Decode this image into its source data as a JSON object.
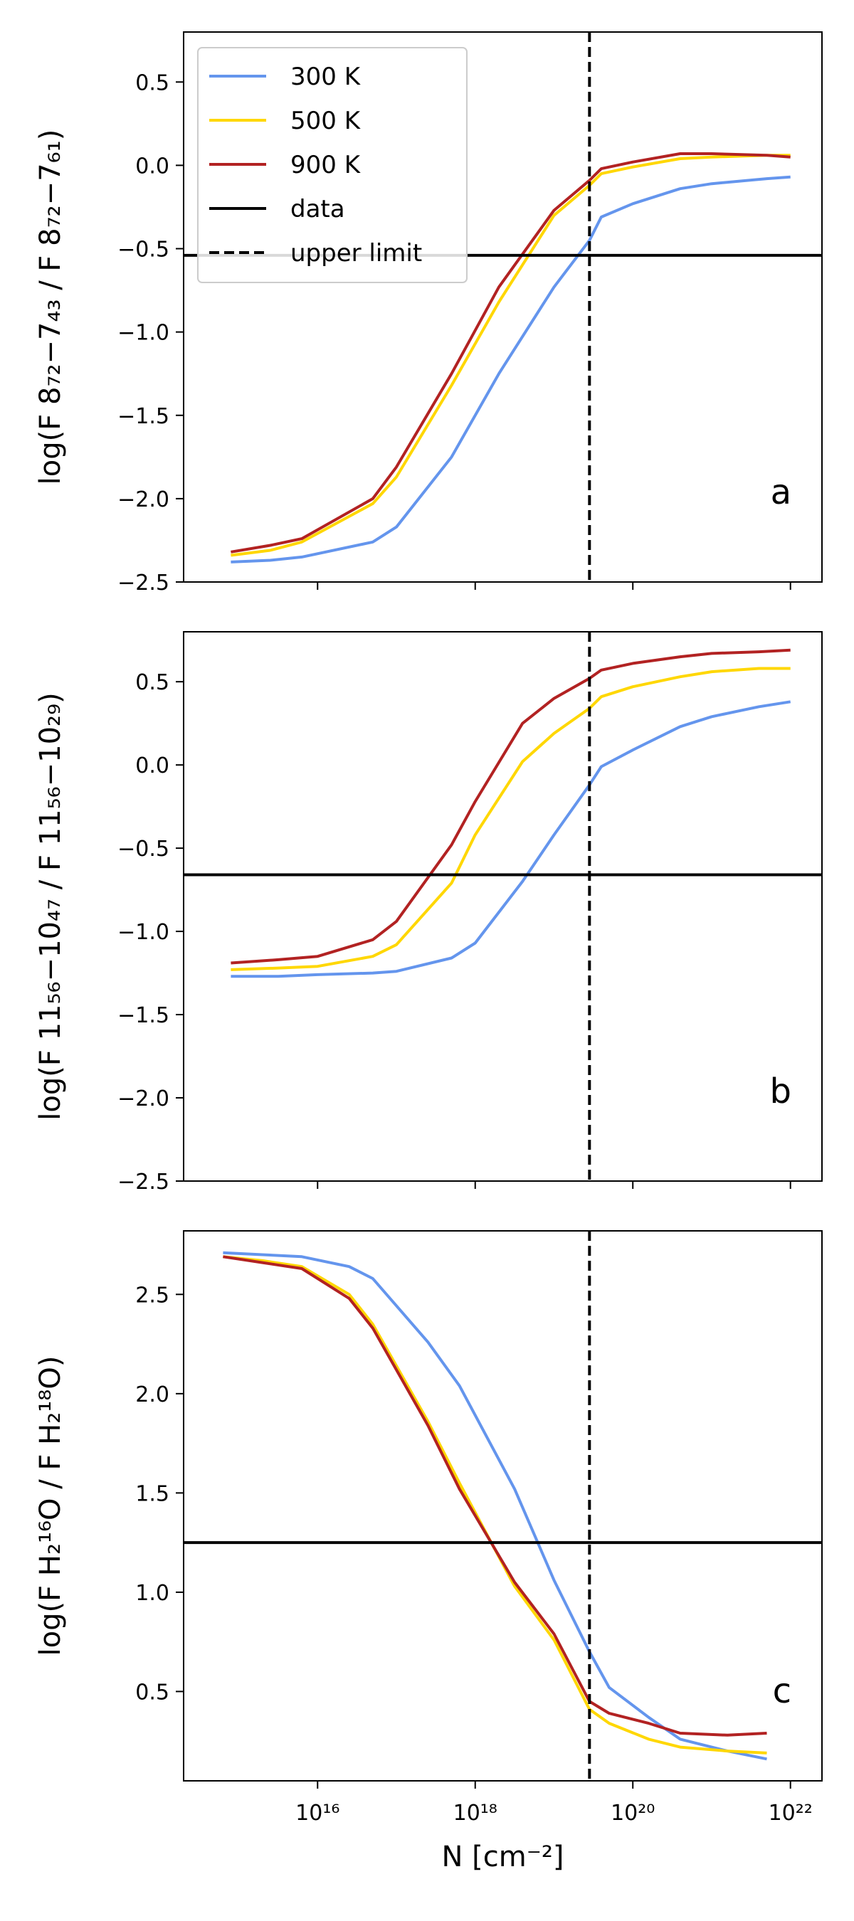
{
  "chart_data": {
    "type": "line",
    "x_scale": "log10",
    "xlabel": "N [cm⁻²]",
    "xlim_log10": [
      14.3,
      22.4
    ],
    "xticks_log10": [
      16,
      18,
      20,
      22
    ],
    "xtick_labels": [
      "10¹⁶",
      "10¹⁸",
      "10²⁰",
      "10²²"
    ],
    "series_colors": {
      "300 K": "#6495ED",
      "500 K": "#FFD700",
      "900 K": "#B22222"
    },
    "legend": {
      "placement": "top-left",
      "entries": [
        {
          "label": "300 K",
          "style": "solid",
          "color": "#6495ED"
        },
        {
          "label": "500 K",
          "style": "solid",
          "color": "#FFD700"
        },
        {
          "label": "900 K",
          "style": "solid",
          "color": "#B22222"
        },
        {
          "label": "data",
          "style": "solid",
          "color": "#000000"
        },
        {
          "label": "upper limit",
          "style": "dashed",
          "color": "#000000"
        }
      ]
    },
    "panels": [
      {
        "letter": "a",
        "ylabel": "log(F 8₇₂−7₄₃ / F 8₇₂−7₆₁)",
        "ylim": [
          -2.5,
          0.8
        ],
        "yticks": [
          -2.5,
          -2.0,
          -1.5,
          -1.0,
          -0.5,
          0.0,
          0.5
        ],
        "ytick_labels": [
          "−2.5",
          "−2.0",
          "−1.5",
          "−1.0",
          "−0.5",
          "0.0",
          "0.5"
        ],
        "data_value": -0.54,
        "upper_limit_log10N": 19.45,
        "series": [
          {
            "name": "300 K",
            "log10N": [
              14.9,
              15.4,
              15.8,
              16.7,
              17.0,
              17.7,
              18.3,
              19.0,
              19.45,
              19.6,
              20.0,
              20.6,
              21.0,
              21.7,
              22.0
            ],
            "values": [
              -2.38,
              -2.37,
              -2.35,
              -2.26,
              -2.17,
              -1.75,
              -1.25,
              -0.73,
              -0.45,
              -0.31,
              -0.23,
              -0.14,
              -0.11,
              -0.08,
              -0.07
            ]
          },
          {
            "name": "500 K",
            "log10N": [
              14.9,
              15.4,
              15.8,
              16.7,
              17.0,
              17.7,
              18.3,
              19.0,
              19.45,
              19.6,
              20.0,
              20.6,
              21.0,
              21.7,
              22.0
            ],
            "values": [
              -2.34,
              -2.31,
              -2.26,
              -2.03,
              -1.87,
              -1.32,
              -0.82,
              -0.3,
              -0.12,
              -0.05,
              -0.01,
              0.04,
              0.05,
              0.06,
              0.06
            ]
          },
          {
            "name": "900 K",
            "log10N": [
              14.9,
              15.4,
              15.8,
              16.7,
              17.0,
              17.7,
              18.3,
              19.0,
              19.45,
              19.6,
              20.0,
              20.6,
              21.0,
              21.7,
              22.0
            ],
            "values": [
              -2.32,
              -2.28,
              -2.24,
              -2.0,
              -1.81,
              -1.25,
              -0.73,
              -0.27,
              -0.09,
              -0.02,
              0.02,
              0.07,
              0.07,
              0.06,
              0.05
            ]
          }
        ]
      },
      {
        "letter": "b",
        "ylabel": "log(F 11₅₆−10₄₇ / F 11₅₆−10₂₉)",
        "ylim": [
          -2.5,
          0.8
        ],
        "yticks": [
          -2.5,
          -2.0,
          -1.5,
          -1.0,
          -0.5,
          0.0,
          0.5
        ],
        "ytick_labels": [
          "−2.5",
          "−2.0",
          "−1.5",
          "−1.0",
          "−0.5",
          "0.0",
          "0.5"
        ],
        "data_value": -0.66,
        "upper_limit_log10N": 19.45,
        "series": [
          {
            "name": "300 K",
            "log10N": [
              14.9,
              15.5,
              16.0,
              16.7,
              17.0,
              17.7,
              18.0,
              18.6,
              19.0,
              19.45,
              19.6,
              20.0,
              20.6,
              21.0,
              21.6,
              22.0
            ],
            "values": [
              -1.27,
              -1.27,
              -1.26,
              -1.25,
              -1.24,
              -1.16,
              -1.07,
              -0.7,
              -0.42,
              -0.12,
              -0.01,
              0.09,
              0.23,
              0.29,
              0.35,
              0.38
            ]
          },
          {
            "name": "500 K",
            "log10N": [
              14.9,
              15.5,
              16.0,
              16.7,
              17.0,
              17.7,
              18.0,
              18.6,
              19.0,
              19.45,
              19.6,
              20.0,
              20.6,
              21.0,
              21.6,
              22.0
            ],
            "values": [
              -1.23,
              -1.22,
              -1.21,
              -1.15,
              -1.08,
              -0.71,
              -0.42,
              0.02,
              0.19,
              0.34,
              0.41,
              0.47,
              0.53,
              0.56,
              0.58,
              0.58
            ]
          },
          {
            "name": "900 K",
            "log10N": [
              14.9,
              15.5,
              16.0,
              16.7,
              17.0,
              17.7,
              18.0,
              18.6,
              19.0,
              19.45,
              19.6,
              20.0,
              20.6,
              21.0,
              21.6,
              22.0
            ],
            "values": [
              -1.19,
              -1.17,
              -1.15,
              -1.05,
              -0.94,
              -0.48,
              -0.22,
              0.25,
              0.4,
              0.52,
              0.57,
              0.61,
              0.65,
              0.67,
              0.68,
              0.69
            ]
          }
        ]
      },
      {
        "letter": "c",
        "ylabel": "log(F H₂¹⁶O / F H₂¹⁸O)",
        "ylim": [
          0.05,
          2.82
        ],
        "yticks": [
          0.5,
          1.0,
          1.5,
          2.0,
          2.5
        ],
        "ytick_labels": [
          "0.5",
          "1.0",
          "1.5",
          "2.0",
          "2.5"
        ],
        "data_value": 1.25,
        "upper_limit_log10N": 19.45,
        "series": [
          {
            "name": "300 K",
            "log10N": [
              14.8,
              15.3,
              15.8,
              16.4,
              16.7,
              17.4,
              17.8,
              18.5,
              19.0,
              19.45,
              19.7,
              20.2,
              20.6,
              21.2,
              21.7
            ],
            "values": [
              2.71,
              2.7,
              2.69,
              2.64,
              2.58,
              2.26,
              2.04,
              1.52,
              1.06,
              0.7,
              0.52,
              0.37,
              0.26,
              0.2,
              0.16
            ]
          },
          {
            "name": "500 K",
            "log10N": [
              14.8,
              15.3,
              15.8,
              16.4,
              16.7,
              17.4,
              17.8,
              18.5,
              19.0,
              19.45,
              19.7,
              20.2,
              20.6,
              21.2,
              21.7
            ],
            "values": [
              2.69,
              2.67,
              2.64,
              2.5,
              2.35,
              1.86,
              1.55,
              1.03,
              0.76,
              0.41,
              0.34,
              0.26,
              0.22,
              0.2,
              0.19
            ]
          },
          {
            "name": "900 K",
            "log10N": [
              14.8,
              15.3,
              15.8,
              16.4,
              16.7,
              17.4,
              17.8,
              18.5,
              19.0,
              19.45,
              19.7,
              20.2,
              20.6,
              21.2,
              21.7
            ],
            "values": [
              2.69,
              2.66,
              2.63,
              2.48,
              2.33,
              1.84,
              1.52,
              1.05,
              0.79,
              0.45,
              0.39,
              0.34,
              0.29,
              0.28,
              0.29
            ]
          }
        ]
      }
    ]
  }
}
